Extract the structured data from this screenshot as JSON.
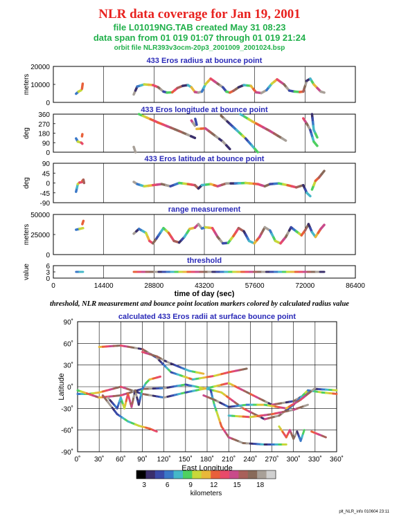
{
  "header": {
    "title": "NLR data coverage for Jan 19, 2001",
    "file_line": "file L01019NG.TAB created May 31 08:23",
    "span_line": "data span from 01 019 01:07 through 01 019 21:24",
    "orbit_line": "orbit file NLR393v3ocm-20p3_2001009_2001024.bsp"
  },
  "caption": "threshold, NLR measurement and bounce point location markers colored by calculated radius value",
  "footer": "plt_NLR_info 010604 23:11",
  "colors": {
    "title_red": "#e8221f",
    "subtitle_green": "#21b04b",
    "panel_title_blue": "#2a2ab8",
    "colorscale": [
      "#000000",
      "#3a2f6b",
      "#3a4aa8",
      "#3a78c8",
      "#46b8c8",
      "#4ed060",
      "#c8d83a",
      "#e8b83a",
      "#e8603a",
      "#e84a6a",
      "#c84a8a",
      "#a8605a",
      "#886a5a",
      "#a8a098",
      "#d0d0d0"
    ]
  },
  "chart_data": [
    {
      "type": "line",
      "title": "433 Eros radius at bounce point",
      "ylabel": "meters",
      "yticks": [
        "20000",
        "10000",
        "0"
      ],
      "ylim": [
        0,
        25000
      ],
      "xlim": [
        0,
        86400
      ],
      "segments": [
        [
          [
            6500,
            6000
          ],
          [
            7200,
            7500
          ],
          [
            8000,
            8500
          ]
        ],
        [
          [
            8200,
            9500
          ],
          [
            8400,
            13000
          ]
        ],
        [
          [
            23000,
            5500
          ],
          [
            24000,
            11000
          ],
          [
            26000,
            12500
          ],
          [
            28500,
            12000
          ],
          [
            30000,
            10500
          ],
          [
            31500,
            7500
          ],
          [
            32500,
            6800
          ],
          [
            34000,
            7000
          ],
          [
            35500,
            10000
          ],
          [
            37000,
            11500
          ],
          [
            38500,
            12000
          ],
          [
            39500,
            10500
          ],
          [
            40500,
            7200
          ],
          [
            41500,
            6800
          ],
          [
            42500,
            7500
          ],
          [
            43500,
            12500
          ],
          [
            45000,
            16500
          ],
          [
            47000,
            13000
          ],
          [
            48500,
            10500
          ],
          [
            49500,
            7500
          ],
          [
            50500,
            6800
          ],
          [
            51500,
            8000
          ],
          [
            53000,
            10500
          ],
          [
            54500,
            12000
          ],
          [
            56500,
            11500
          ],
          [
            58000,
            7000
          ],
          [
            59500,
            6500
          ],
          [
            61000,
            8500
          ],
          [
            62500,
            13000
          ],
          [
            64000,
            16000
          ],
          [
            66000,
            12500
          ],
          [
            67500,
            8200
          ],
          [
            69000,
            7500
          ],
          [
            70500,
            7200
          ],
          [
            71500,
            7500
          ],
          [
            72500,
            15000
          ],
          [
            73500,
            16500
          ],
          [
            74500,
            12500
          ],
          [
            75500,
            10000
          ],
          [
            76500,
            7500
          ],
          [
            77500,
            6800
          ]
        ]
      ]
    },
    {
      "type": "line",
      "title": "433 Eros longitude at bounce point",
      "ylabel": "deg",
      "yticks": [
        "360",
        "270",
        "180",
        "90",
        "0"
      ],
      "ylim": [
        0,
        360
      ],
      "xlim": [
        0,
        86400
      ],
      "segments": [
        [
          [
            6500,
            130
          ],
          [
            7000,
            100
          ],
          [
            8000,
            90
          ],
          [
            8300,
            80
          ]
        ],
        [
          [
            8200,
            150
          ],
          [
            8300,
            170
          ]
        ],
        [
          [
            23000,
            50
          ],
          [
            23500,
            0
          ]
        ],
        [
          [
            24500,
            360
          ],
          [
            30000,
            280
          ],
          [
            36000,
            200
          ],
          [
            40500,
            135
          ]
        ],
        [
          [
            39500,
            300
          ],
          [
            40000,
            275
          ],
          [
            40500,
            250
          ]
        ],
        [
          [
            40600,
            315
          ],
          [
            41000,
            260
          ]
        ],
        [
          [
            41000,
            220
          ],
          [
            43500,
            225
          ],
          [
            48500,
            100
          ],
          [
            50500,
            30
          ]
        ],
        [
          [
            48000,
            345
          ],
          [
            55000,
            130
          ],
          [
            58500,
            0
          ]
        ],
        [
          [
            53500,
            360
          ],
          [
            57000,
            290
          ],
          [
            62000,
            200
          ],
          [
            66500,
            110
          ]
        ],
        [
          [
            71500,
            320
          ],
          [
            72500,
            270
          ],
          [
            73500,
            210
          ],
          [
            74500,
            100
          ],
          [
            75500,
            60
          ]
        ],
        [
          [
            74000,
            360
          ],
          [
            74500,
            210
          ],
          [
            75500,
            140
          ]
        ]
      ]
    },
    {
      "type": "line",
      "title": "433 Eros latitude at bounce point",
      "ylabel": "deg",
      "yticks": [
        "90",
        "45",
        "0",
        "-45",
        "-90"
      ],
      "ylim": [
        -90,
        90
      ],
      "xlim": [
        0,
        86400
      ],
      "segments": [
        [
          [
            6500,
            -40
          ],
          [
            7000,
            -5
          ],
          [
            7500,
            2
          ],
          [
            8500,
            5
          ]
        ],
        [
          [
            8300,
            10
          ],
          [
            8600,
            15
          ],
          [
            8800,
            0
          ]
        ],
        [
          [
            23000,
            5
          ],
          [
            24000,
            -5
          ],
          [
            26000,
            -15
          ],
          [
            28500,
            -10
          ],
          [
            31000,
            -5
          ],
          [
            33500,
            -15
          ],
          [
            36000,
            0
          ],
          [
            38500,
            -5
          ],
          [
            40500,
            -10
          ],
          [
            41500,
            -25
          ],
          [
            42500,
            -10
          ],
          [
            45000,
            -5
          ],
          [
            47000,
            -15
          ],
          [
            49500,
            -2
          ],
          [
            52000,
            -2
          ],
          [
            55000,
            0
          ],
          [
            58500,
            -5
          ],
          [
            60500,
            -15
          ],
          [
            62000,
            -5
          ],
          [
            64500,
            -2
          ],
          [
            67000,
            -10
          ],
          [
            69500,
            -20
          ],
          [
            71500,
            -10
          ],
          [
            72500,
            -45
          ],
          [
            73500,
            -60
          ]
        ],
        [
          [
            74000,
            -30
          ],
          [
            75000,
            10
          ],
          [
            76000,
            25
          ],
          [
            77500,
            55
          ]
        ]
      ]
    },
    {
      "type": "line",
      "title": "range measurement",
      "ylabel": "meters",
      "yticks": [
        "50000",
        "25000",
        "0"
      ],
      "ylim": [
        0,
        50000
      ],
      "xlim": [
        0,
        86400
      ],
      "segments": [
        [
          [
            6500,
            31000
          ],
          [
            7500,
            32000
          ],
          [
            8500,
            33000
          ]
        ],
        [
          [
            8300,
            38000
          ],
          [
            8600,
            42000
          ]
        ],
        [
          [
            23000,
            26000
          ],
          [
            24500,
            32000
          ],
          [
            26500,
            27000
          ],
          [
            27500,
            17000
          ],
          [
            28500,
            14000
          ],
          [
            29500,
            20000
          ],
          [
            31500,
            33000
          ],
          [
            33000,
            27000
          ],
          [
            34500,
            17000
          ],
          [
            36000,
            15000
          ],
          [
            37500,
            22000
          ],
          [
            39000,
            32000
          ],
          [
            40500,
            33500
          ],
          [
            41500,
            38000
          ],
          [
            42500,
            32500
          ],
          [
            43500,
            34000
          ],
          [
            45500,
            33000
          ],
          [
            47000,
            22000
          ],
          [
            48500,
            14000
          ],
          [
            50000,
            14500
          ],
          [
            51500,
            23000
          ],
          [
            53000,
            33000
          ],
          [
            54500,
            29000
          ],
          [
            56000,
            17000
          ],
          [
            57500,
            14000
          ],
          [
            59000,
            22000
          ],
          [
            60500,
            34000
          ],
          [
            62000,
            30000
          ],
          [
            63500,
            17000
          ],
          [
            65000,
            14000
          ],
          [
            66500,
            22000
          ],
          [
            68000,
            34000
          ],
          [
            69500,
            29000
          ],
          [
            71000,
            24000
          ],
          [
            72000,
            30000
          ],
          [
            73000,
            38000
          ],
          [
            74000,
            28000
          ],
          [
            75000,
            22000
          ],
          [
            76500,
            32000
          ],
          [
            77500,
            37000
          ]
        ]
      ]
    },
    {
      "type": "scatter",
      "title": "threshold",
      "ylabel": "value",
      "yticks": [
        "6",
        "3",
        "0"
      ],
      "ylim": [
        0,
        6
      ],
      "xlim": [
        0,
        86400
      ],
      "xticks": [
        "0",
        "14400",
        "28800",
        "43200",
        "57600",
        "72000",
        "86400"
      ],
      "xlabel": "time of day (sec)",
      "segments": [
        [
          [
            6500,
            3
          ],
          [
            8500,
            3
          ]
        ],
        [
          [
            23000,
            3
          ],
          [
            77500,
            3
          ]
        ]
      ]
    },
    {
      "type": "scatter",
      "title": "calculated 433 Eros radii at surface bounce point",
      "xlabel": "East Longitude",
      "ylabel": "Latitude",
      "xlim": [
        0,
        360
      ],
      "ylim": [
        -90,
        90
      ],
      "xticks": [
        "0˚",
        "30˚",
        "60˚",
        "90˚",
        "120˚",
        "150˚",
        "180˚",
        "210˚",
        "240˚",
        "270˚",
        "300˚",
        "330˚",
        "360˚"
      ],
      "yticks": [
        "90˚",
        "60˚",
        "30˚",
        "0˚",
        "-30˚",
        "-60˚",
        "-90˚"
      ],
      "colorbar": {
        "label": "kilometers",
        "ticks": [
          "3",
          "6",
          "9",
          "12",
          "15",
          "18"
        ],
        "range": [
          2,
          20
        ]
      },
      "tracks": [
        [
          [
            0,
            -10
          ],
          [
            15,
            -10
          ],
          [
            30,
            -8
          ],
          [
            60,
            0
          ],
          [
            90,
            -10
          ],
          [
            120,
            -15
          ],
          [
            150,
            -8
          ],
          [
            180,
            -2
          ],
          [
            210,
            5
          ],
          [
            240,
            -10
          ],
          [
            270,
            -25
          ],
          [
            300,
            -20
          ],
          [
            330,
            -3
          ],
          [
            360,
            -5
          ]
        ],
        [
          [
            0,
            -5
          ],
          [
            30,
            -15
          ],
          [
            60,
            -12
          ],
          [
            90,
            -3
          ],
          [
            120,
            -2
          ],
          [
            150,
            3
          ],
          [
            180,
            -3
          ],
          [
            200,
            -8
          ],
          [
            230,
            -30
          ],
          [
            260,
            -45
          ],
          [
            280,
            -40
          ],
          [
            300,
            -25
          ],
          [
            320,
            -5
          ],
          [
            340,
            -8
          ],
          [
            360,
            -10
          ]
        ],
        [
          [
            30,
            55
          ],
          [
            60,
            57
          ],
          [
            90,
            52
          ],
          [
            110,
            40
          ],
          [
            130,
            20
          ],
          [
            160,
            10
          ],
          [
            190,
            15
          ],
          [
            210,
            20
          ],
          [
            235,
            25
          ]
        ],
        [
          [
            90,
            48
          ],
          [
            110,
            42
          ],
          [
            125,
            34
          ],
          [
            140,
            28
          ],
          [
            155,
            22
          ],
          [
            175,
            18
          ]
        ],
        [
          [
            35,
            -12
          ],
          [
            45,
            -25
          ],
          [
            55,
            -38
          ],
          [
            70,
            -48
          ],
          [
            85,
            -54
          ],
          [
            100,
            -58
          ],
          [
            110,
            -62
          ]
        ],
        [
          [
            42,
            -15
          ],
          [
            55,
            -30
          ],
          [
            60,
            -15
          ],
          [
            65,
            -30
          ],
          [
            70,
            -10
          ],
          [
            75,
            -28
          ],
          [
            80,
            -5
          ],
          [
            85,
            -25
          ],
          [
            90,
            -3
          ],
          [
            95,
            5
          ],
          [
            100,
            10
          ],
          [
            115,
            14
          ]
        ],
        [
          [
            185,
            -5
          ],
          [
            190,
            -25
          ],
          [
            195,
            -40
          ],
          [
            200,
            -55
          ],
          [
            210,
            -70
          ],
          [
            230,
            -78
          ],
          [
            260,
            -80
          ],
          [
            290,
            -80
          ]
        ],
        [
          [
            210,
            -40
          ],
          [
            240,
            -42
          ],
          [
            270,
            -38
          ],
          [
            300,
            -32
          ],
          [
            320,
            -25
          ]
        ],
        [
          [
            280,
            -55
          ],
          [
            290,
            -70
          ],
          [
            295,
            -60
          ],
          [
            300,
            -72
          ],
          [
            305,
            -62
          ],
          [
            310,
            -75
          ],
          [
            315,
            -60
          ]
        ],
        [
          [
            325,
            -62
          ],
          [
            335,
            -66
          ],
          [
            345,
            -70
          ]
        ],
        [
          [
            175,
            -12
          ],
          [
            190,
            -18
          ],
          [
            210,
            -28
          ],
          [
            235,
            -25
          ],
          [
            260,
            -25
          ],
          [
            290,
            -30
          ],
          [
            310,
            -18
          ],
          [
            330,
            -2
          ]
        ]
      ]
    }
  ]
}
